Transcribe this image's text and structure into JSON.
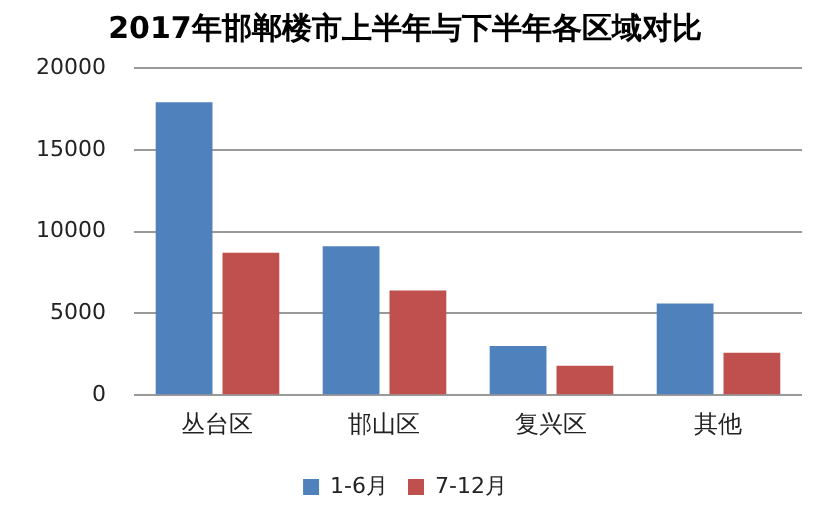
{
  "chart_data": {
    "type": "bar",
    "title": "2017年邯郸楼市上半年与下半年各区域对比",
    "categories": [
      "丛台区",
      "邯山区",
      "复兴区",
      "其他"
    ],
    "series": [
      {
        "name": "1-6月",
        "color": "#4f81bd",
        "values": [
          17900,
          9100,
          3000,
          5600
        ]
      },
      {
        "name": "7-12月",
        "color": "#c0504d",
        "values": [
          8700,
          6400,
          1800,
          2600
        ]
      }
    ],
    "ylim": [
      0,
      20000
    ],
    "yticks": [
      0,
      5000,
      10000,
      15000,
      20000
    ],
    "grid": "y",
    "legend": "bottom"
  }
}
